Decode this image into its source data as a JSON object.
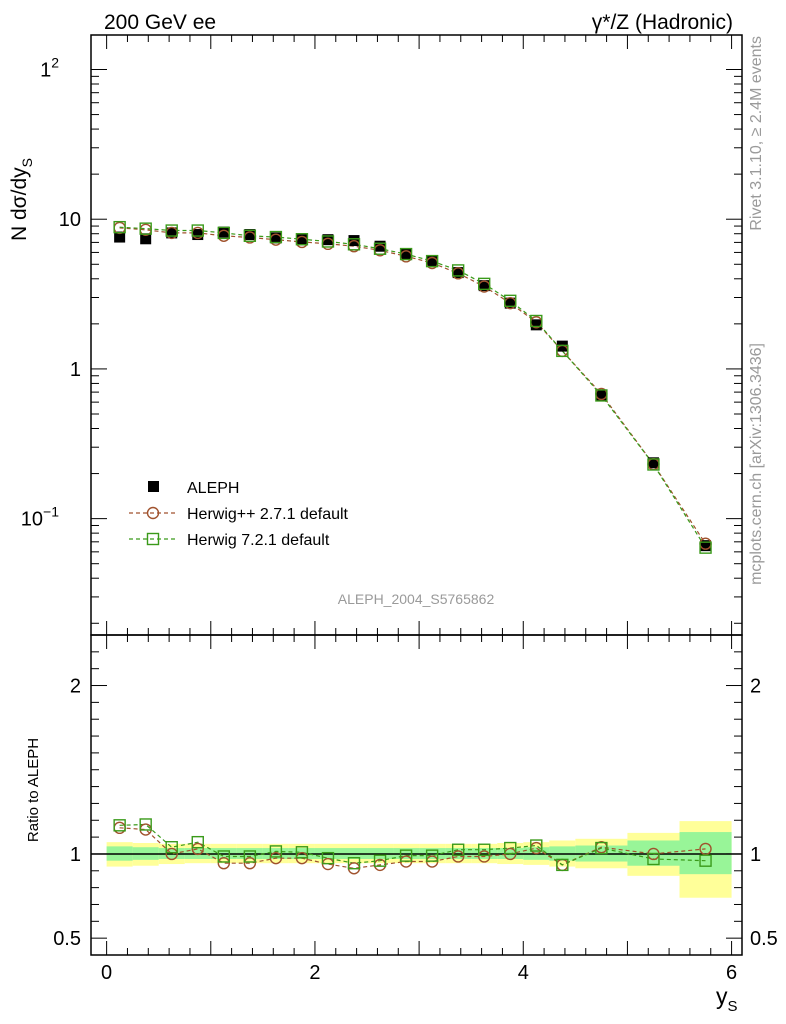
{
  "header": {
    "left_label": "200 GeV ee",
    "right_label": "γ*/Z (Hadronic)"
  },
  "side_text": {
    "rivet": "Rivet 3.1.10, ≥ 2.4M events",
    "mcplots": "mcplots.cern.ch [arXiv:1306.3436]"
  },
  "watermark": "ALEPH_2004_S5765862",
  "colors": {
    "data": "#000000",
    "herwigpp": "#a0522d",
    "herwig7": "#3a9a1a",
    "band_inner": "#98f598",
    "band_outer": "#ffff99"
  },
  "chart_data": [
    {
      "type": "scatter",
      "panel": "main",
      "ylabel": "N dσ/dy",
      "ylabel_sub": "S",
      "yscale": "log",
      "xlim": [
        -0.15,
        6.1
      ],
      "ylim": [
        0.0167,
        170
      ],
      "y_tick_labels": [
        "10",
        "1",
        "10",
        "1",
        "10"
      ],
      "y_tick_values": [
        0.1,
        1,
        10,
        100
      ],
      "x": [
        0.125,
        0.375,
        0.625,
        0.875,
        1.125,
        1.375,
        1.625,
        1.875,
        2.125,
        2.375,
        2.625,
        2.875,
        3.125,
        3.375,
        3.625,
        3.875,
        4.125,
        4.375,
        4.75,
        5.25,
        5.75
      ],
      "legend": [
        {
          "label": "ALEPH",
          "marker": "filled-square"
        },
        {
          "label": "Herwig++ 2.7.1 default",
          "marker": "open-circle"
        },
        {
          "label": "Herwig 7.2.1 default",
          "marker": "open-square"
        }
      ],
      "series": [
        {
          "name": "ALEPH",
          "values": [
            7.6,
            7.4,
            8.1,
            7.9,
            8.2,
            7.9,
            7.5,
            7.3,
            7.3,
            7.2,
            6.6,
            5.9,
            5.3,
            4.4,
            3.6,
            2.75,
            1.97,
            1.42,
            0.66,
            0.236,
            0.066
          ]
        },
        {
          "name": "Herwig++ 2.7.1 default",
          "values": [
            8.75,
            8.5,
            8.1,
            8.1,
            7.75,
            7.55,
            7.3,
            7.05,
            6.85,
            6.6,
            6.2,
            5.65,
            5.1,
            4.35,
            3.55,
            2.75,
            2.05,
            1.32,
            0.68,
            0.231,
            0.068
          ]
        },
        {
          "name": "Herwig 7.2.1 default",
          "values": [
            8.85,
            8.65,
            8.4,
            8.4,
            8.1,
            7.75,
            7.6,
            7.35,
            7.1,
            6.8,
            6.35,
            5.85,
            5.25,
            4.55,
            3.7,
            2.85,
            2.09,
            1.32,
            0.665,
            0.23,
            0.064
          ]
        }
      ]
    },
    {
      "type": "scatter",
      "panel": "ratio",
      "ylabel": "Ratio to ALEPH",
      "xlabel": "y",
      "xlabel_sub": "S",
      "xlim": [
        -0.15,
        6.1
      ],
      "ylim": [
        0.4,
        2.3
      ],
      "y_tick_labels": [
        "0.5",
        "1",
        "2"
      ],
      "y_tick_values": [
        0.5,
        1,
        2
      ],
      "x_tick_labels": [
        "0",
        "2",
        "4",
        "6"
      ],
      "x_tick_values": [
        0,
        2,
        4,
        6
      ],
      "x": [
        0.125,
        0.375,
        0.625,
        0.875,
        1.125,
        1.375,
        1.625,
        1.875,
        2.125,
        2.375,
        2.625,
        2.875,
        3.125,
        3.375,
        3.625,
        3.875,
        4.125,
        4.375,
        4.75,
        5.25,
        5.75
      ],
      "bin_edges": [
        0,
        0.25,
        0.5,
        0.75,
        1,
        1.25,
        1.5,
        1.75,
        2,
        2.25,
        2.5,
        2.75,
        3,
        3.25,
        3.5,
        3.75,
        4,
        4.25,
        4.5,
        5,
        5.5,
        6
      ],
      "band_inner": [
        [
          0.96,
          1.045
        ],
        [
          0.965,
          1.04
        ],
        [
          0.97,
          1.035
        ],
        [
          0.97,
          1.035
        ],
        [
          0.97,
          1.035
        ],
        [
          0.97,
          1.035
        ],
        [
          0.97,
          1.035
        ],
        [
          0.97,
          1.035
        ],
        [
          0.97,
          1.035
        ],
        [
          0.97,
          1.035
        ],
        [
          0.97,
          1.035
        ],
        [
          0.97,
          1.035
        ],
        [
          0.97,
          1.035
        ],
        [
          0.97,
          1.035
        ],
        [
          0.97,
          1.035
        ],
        [
          0.97,
          1.035
        ],
        [
          0.965,
          1.04
        ],
        [
          0.96,
          1.045
        ],
        [
          0.955,
          1.05
        ],
        [
          0.93,
          1.08
        ],
        [
          0.88,
          1.13
        ]
      ],
      "band_outer": [
        [
          0.925,
          1.07
        ],
        [
          0.93,
          1.065
        ],
        [
          0.94,
          1.06
        ],
        [
          0.945,
          1.06
        ],
        [
          0.945,
          1.06
        ],
        [
          0.945,
          1.06
        ],
        [
          0.945,
          1.06
        ],
        [
          0.945,
          1.06
        ],
        [
          0.945,
          1.06
        ],
        [
          0.945,
          1.06
        ],
        [
          0.945,
          1.06
        ],
        [
          0.945,
          1.06
        ],
        [
          0.945,
          1.06
        ],
        [
          0.945,
          1.06
        ],
        [
          0.945,
          1.06
        ],
        [
          0.94,
          1.065
        ],
        [
          0.935,
          1.07
        ],
        [
          0.925,
          1.08
        ],
        [
          0.915,
          1.09
        ],
        [
          0.87,
          1.125
        ],
        [
          0.74,
          1.195
        ]
      ],
      "series": [
        {
          "name": "Herwig++ 2.7.1 default",
          "values": [
            1.155,
            1.145,
            1.0,
            1.03,
            0.945,
            0.945,
            0.975,
            0.975,
            0.94,
            0.915,
            0.935,
            0.955,
            0.955,
            0.985,
            0.985,
            1.0,
            1.035,
            0.935,
            1.04,
            1.0,
            1.03
          ]
        },
        {
          "name": "Herwig 7.2.1 default",
          "values": [
            1.17,
            1.175,
            1.04,
            1.07,
            0.985,
            0.985,
            1.015,
            1.01,
            0.975,
            0.945,
            0.96,
            0.99,
            0.99,
            1.025,
            1.025,
            1.035,
            1.05,
            0.935,
            1.035,
            0.97,
            0.96
          ]
        }
      ]
    }
  ]
}
